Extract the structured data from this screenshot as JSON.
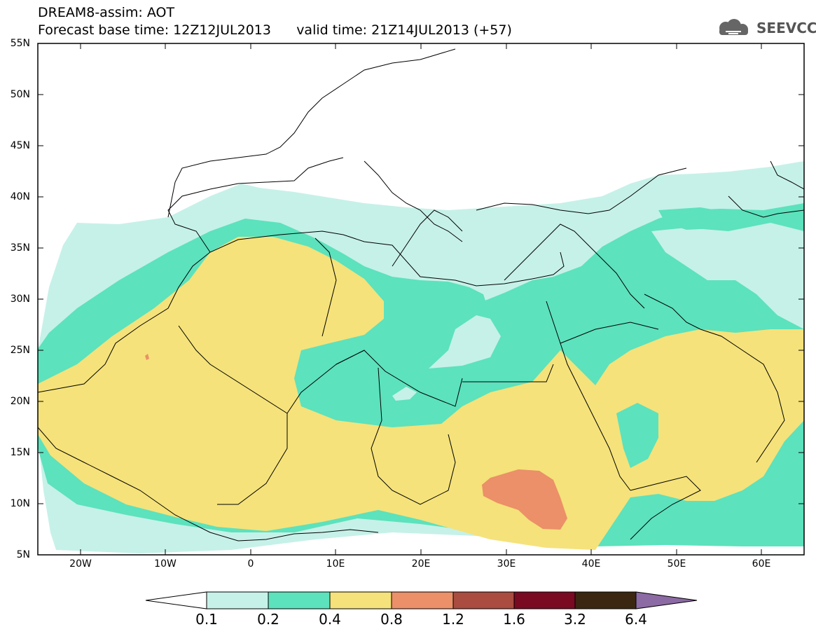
{
  "title": {
    "line1": "DREAM8-assim: AOT",
    "line2": "Forecast base time: 12Z12JUL2013      valid time: 21Z14JUL2013 (+57)"
  },
  "logo": {
    "text": "SEEVCCC",
    "icon": "cloud-icon"
  },
  "map": {
    "lon_range": [
      -25,
      65
    ],
    "lat_range": [
      5,
      55
    ],
    "lat_labels": [
      "55N",
      "50N",
      "45N",
      "40N",
      "35N",
      "30N",
      "25N",
      "20N",
      "15N",
      "10N",
      "5N"
    ],
    "lon_labels": [
      "20W",
      "10W",
      "0",
      "10E",
      "20E",
      "30E",
      "40E",
      "50E",
      "60E"
    ]
  },
  "colorbar": {
    "levels": [
      "0.1",
      "0.2",
      "0.4",
      "0.8",
      "1.2",
      "1.6",
      "3.2",
      "6.4"
    ],
    "colors": [
      "#ffffff",
      "#c6f1e8",
      "#5ce2bd",
      "#f5e27a",
      "#eb9068",
      "#aa4c40",
      "#7a0a22",
      "#3b2612",
      "#8c6aa4"
    ]
  }
}
